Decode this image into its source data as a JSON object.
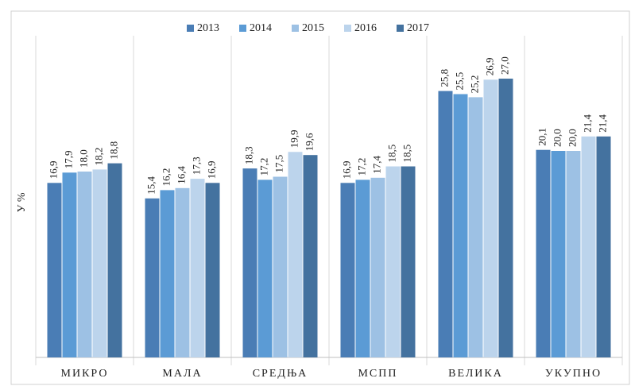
{
  "chart_data": {
    "type": "bar",
    "y_label": "У %",
    "categories": [
      "МИКРО",
      "МАЛА",
      "СРЕДЊА",
      "МСПП",
      "ВЕЛИКА",
      "УКУПНО"
    ],
    "series": [
      {
        "name": "2013",
        "color": "#4a7db5",
        "values": [
          16.9,
          15.4,
          18.3,
          16.9,
          25.8,
          20.1
        ],
        "value_labels": [
          "16,9",
          "15,4",
          "18,3",
          "16,9",
          "25,8",
          "20,1"
        ]
      },
      {
        "name": "2014",
        "color": "#5b9bd5",
        "values": [
          17.9,
          16.2,
          17.2,
          17.2,
          25.5,
          20.0
        ],
        "value_labels": [
          "17,9",
          "16,2",
          "17,2",
          "17,2",
          "25,5",
          "20,0"
        ]
      },
      {
        "name": "2015",
        "color": "#9dc1e4",
        "values": [
          18.0,
          16.4,
          17.5,
          17.4,
          25.2,
          20.0
        ],
        "value_labels": [
          "18,0",
          "16,4",
          "17,5",
          "17,4",
          "25,2",
          "20,0"
        ]
      },
      {
        "name": "2016",
        "color": "#bcd4ec",
        "values": [
          18.2,
          17.3,
          19.9,
          18.5,
          26.9,
          21.4
        ],
        "value_labels": [
          "18,2",
          "17,3",
          "19,9",
          "18,5",
          "26,9",
          "21,4"
        ]
      },
      {
        "name": "2017",
        "color": "#44729f",
        "values": [
          18.8,
          16.9,
          19.6,
          18.5,
          27.0,
          21.4
        ],
        "value_labels": [
          "18,8",
          "16,9",
          "19,6",
          "18,5",
          "27,0",
          "21,4"
        ]
      }
    ],
    "ylim": [
      0,
      30
    ],
    "legend": "top"
  }
}
